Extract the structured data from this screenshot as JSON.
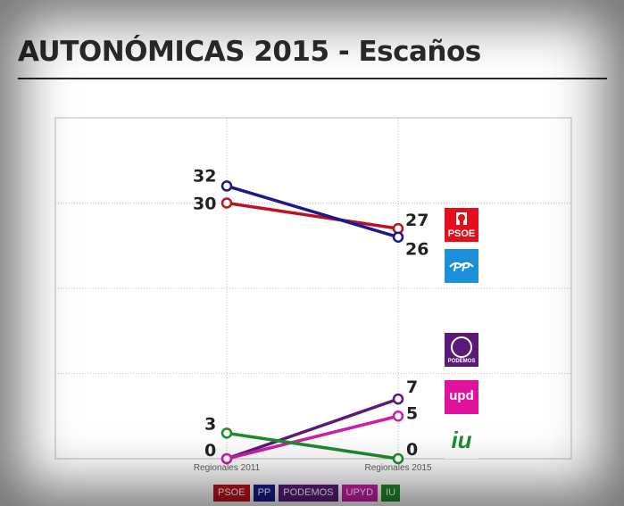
{
  "title": "AUTONÓMICAS 2015 - Escaños",
  "chart_data": {
    "type": "line",
    "categories": [
      "Regionales 2011",
      "Regionales 2015"
    ],
    "ylim": [
      0,
      40
    ],
    "grid": true,
    "series": [
      {
        "name": "PSOE",
        "color": "#c0101f",
        "values": [
          30,
          27
        ],
        "labels": [
          "30",
          "27"
        ]
      },
      {
        "name": "PP",
        "color": "#1a1a8c",
        "values": [
          32,
          26
        ],
        "labels": [
          "32",
          "26"
        ]
      },
      {
        "name": "PODEMOS",
        "color": "#5b1a7a",
        "values": [
          0,
          7
        ],
        "labels": [
          "0",
          "7"
        ]
      },
      {
        "name": "UPYD",
        "color": "#cc1fa8",
        "values": [
          0,
          5
        ],
        "labels": [
          "",
          "5"
        ]
      },
      {
        "name": "IU",
        "color": "#1e8c2c",
        "values": [
          3,
          0
        ],
        "labels": [
          "3",
          "0"
        ]
      }
    ],
    "legend_position": "bottom"
  },
  "logos": {
    "psoe": {
      "text": "PSOE",
      "color": "#e3101c",
      "icon": "psoe-rose-fist-icon"
    },
    "pp": {
      "text": "PP",
      "color": "#1b8fd8",
      "icon": "pp-seagull-icon"
    },
    "podemos": {
      "text": "PODEMOS",
      "color": "#5b1a7a",
      "icon": "podemos-circles-icon"
    },
    "upyd": {
      "text": "upd",
      "color": "#e0119a",
      "icon": "upyd-icon"
    },
    "iu": {
      "text": "iu",
      "color": "#1e8c2c",
      "icon": "iu-icon"
    }
  }
}
